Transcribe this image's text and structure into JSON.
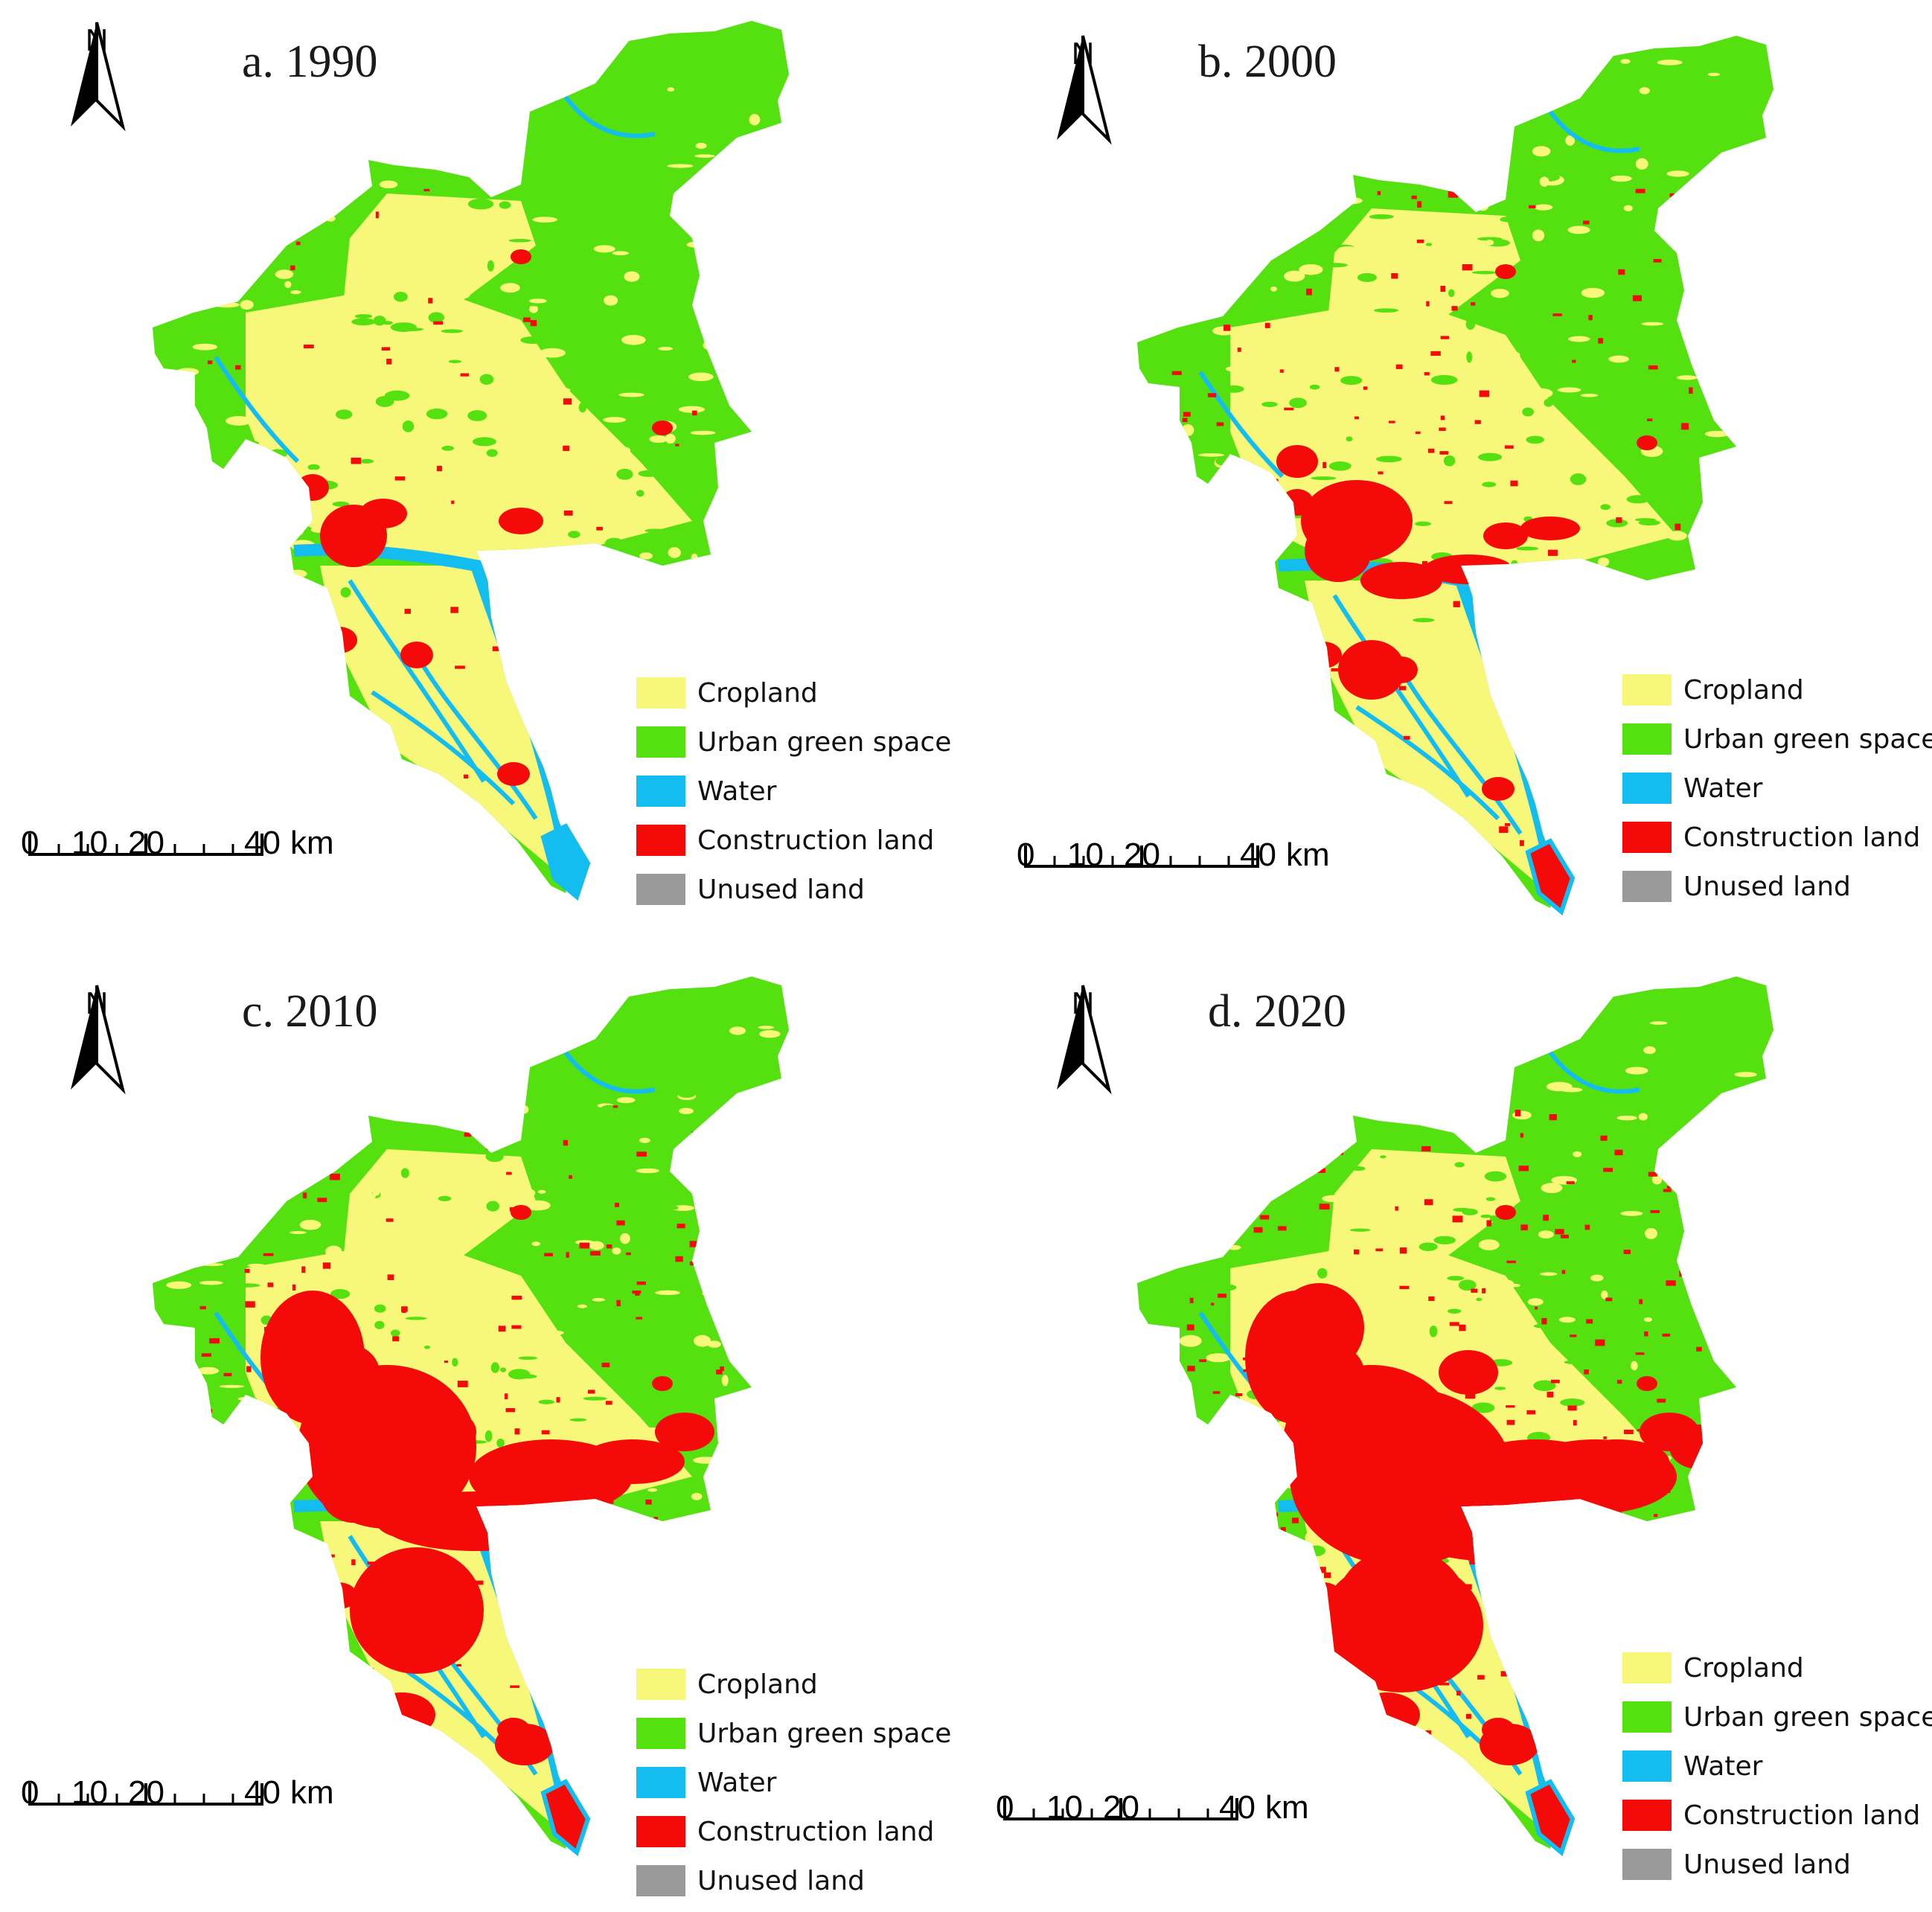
{
  "figure": {
    "panels": [
      {
        "title": "a. 1990"
      },
      {
        "title": "b. 2000"
      },
      {
        "title": "c. 2010"
      },
      {
        "title": "d. 2020"
      }
    ]
  },
  "north_arrow": {
    "letter": "N"
  },
  "scale_bar": {
    "tick_labels": [
      "0",
      "10",
      "20",
      "40"
    ],
    "unit": "km"
  },
  "legend": {
    "items": [
      {
        "label": "Cropland",
        "color": "#f7f77a"
      },
      {
        "label": "Urban green space",
        "color": "#55e010"
      },
      {
        "label": "Water",
        "color": "#14bdf0"
      },
      {
        "label": "Construction land",
        "color": "#f50a0a"
      },
      {
        "label": "Unused land",
        "color": "#9a9a9a"
      }
    ]
  },
  "map": {
    "construction_extent_relative": [
      1,
      1.55,
      3.1,
      3.6
    ]
  }
}
